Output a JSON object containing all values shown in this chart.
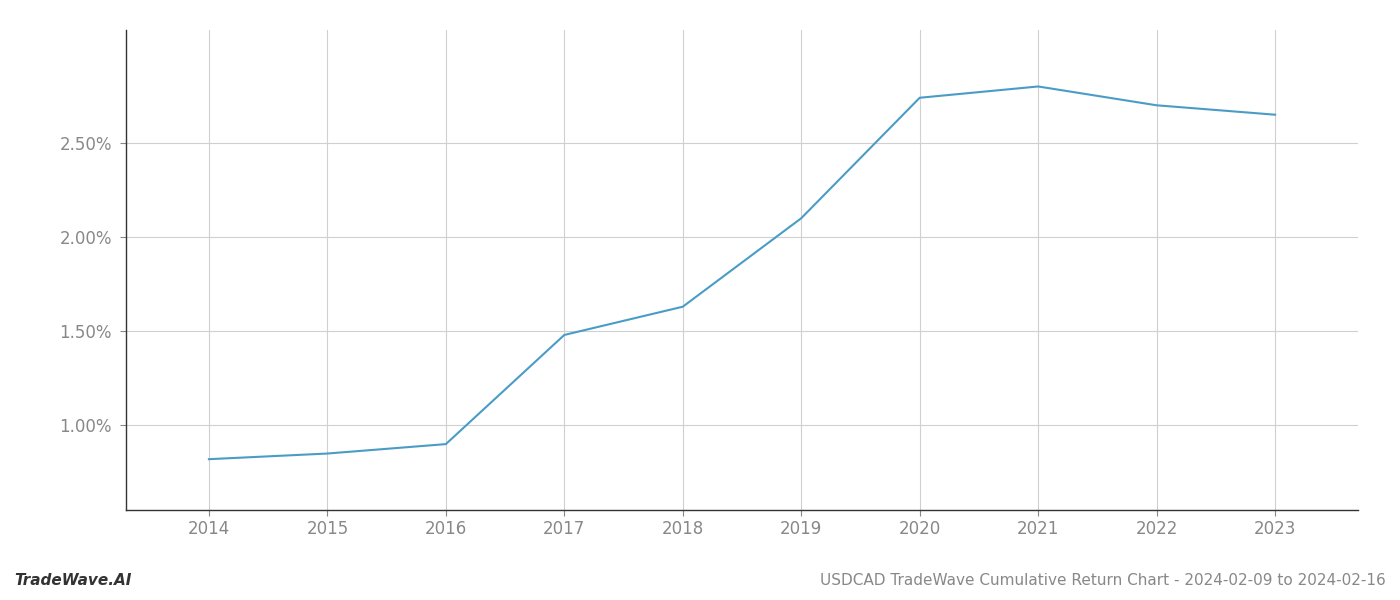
{
  "title": "USDCAD TradeWave Cumulative Return Chart - 2024-02-09 to 2024-02-16",
  "watermark": "TradeWave.AI",
  "x_values": [
    2014,
    2015,
    2016,
    2017,
    2018,
    2019,
    2020,
    2021,
    2022,
    2023
  ],
  "y_values": [
    0.0082,
    0.0085,
    0.009,
    0.0148,
    0.0163,
    0.021,
    0.0274,
    0.028,
    0.027,
    0.0265
  ],
  "line_color": "#4a9cc7",
  "line_width": 1.5,
  "background_color": "#ffffff",
  "grid_color": "#d0d0d0",
  "ylim_min": 0.0055,
  "ylim_max": 0.031,
  "xlim_min": 2013.3,
  "xlim_max": 2023.7,
  "tick_fontsize": 12,
  "title_fontsize": 11,
  "watermark_fontsize": 11,
  "yticks": [
    0.01,
    0.015,
    0.02,
    0.025
  ]
}
